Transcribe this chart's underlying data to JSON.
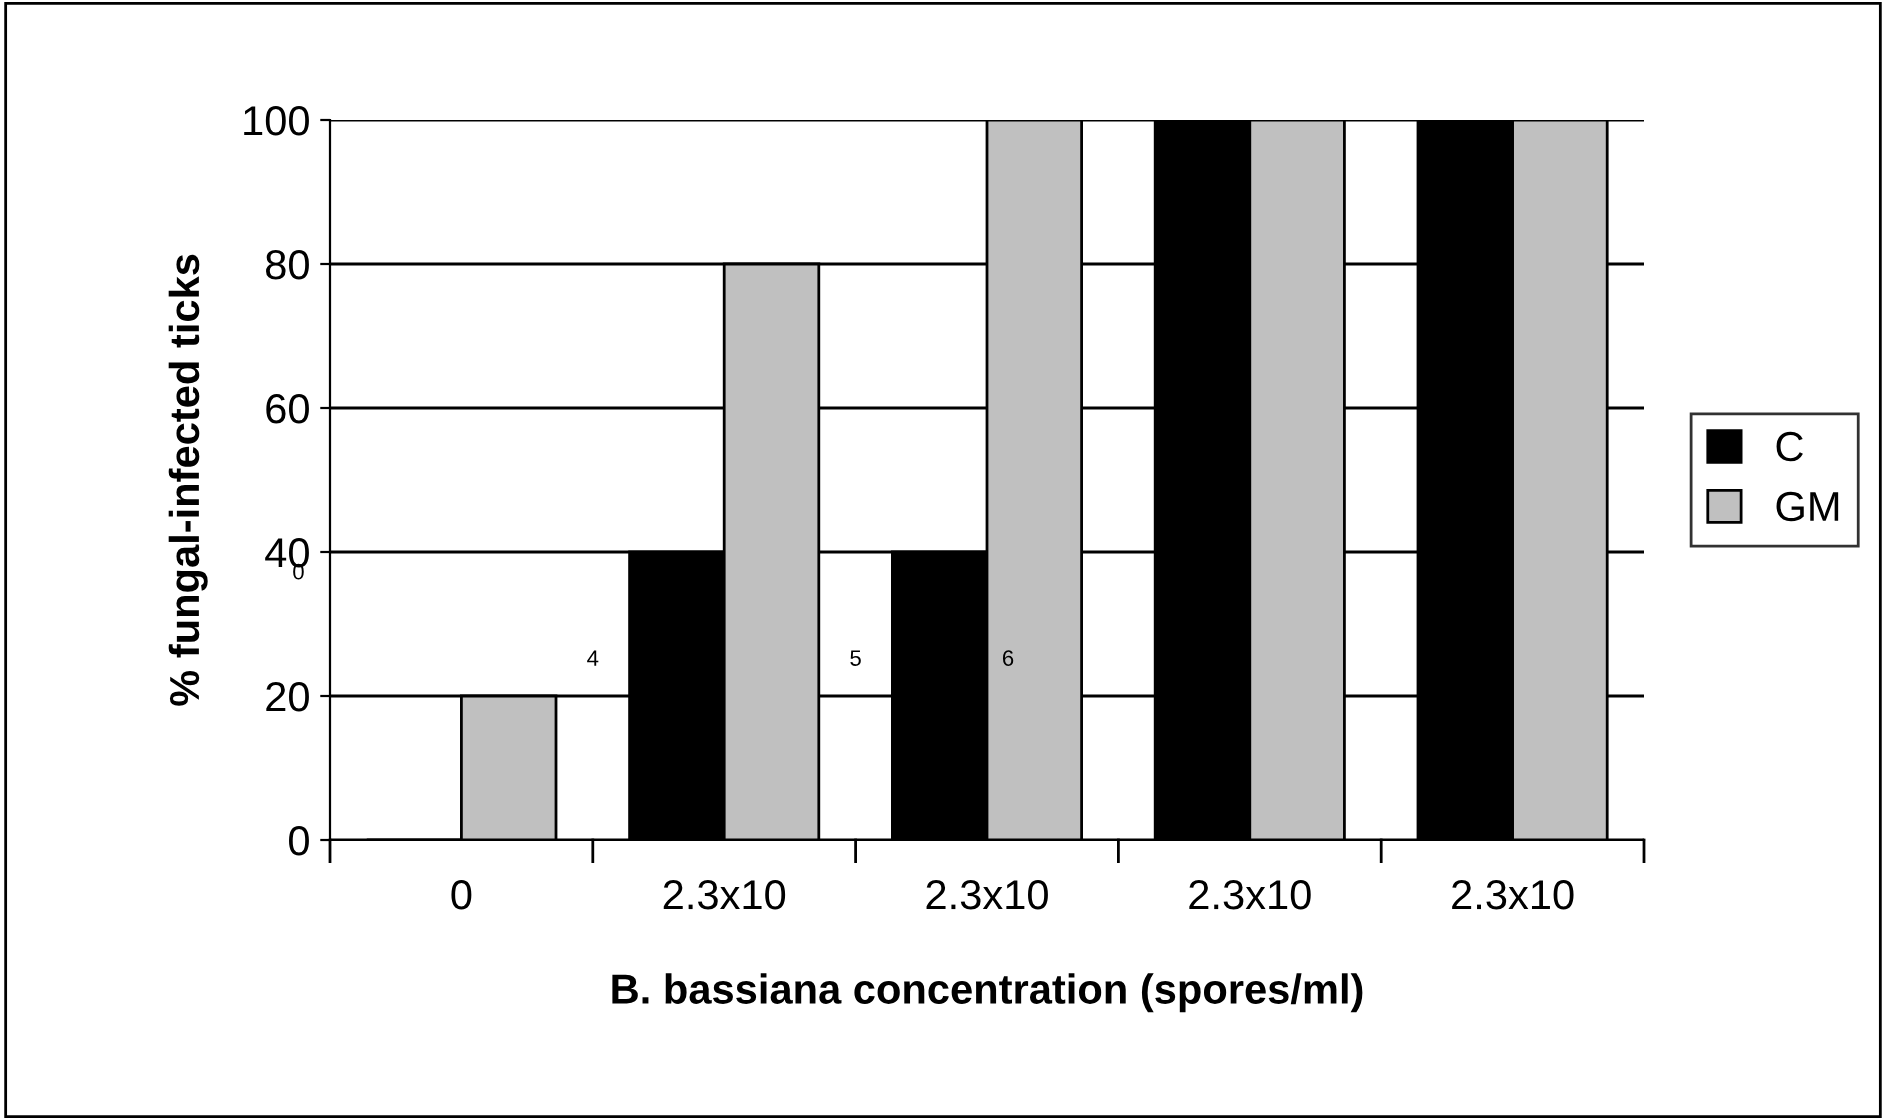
{
  "chart_data": {
    "type": "bar",
    "categories": [
      "0",
      "2.3x10",
      "2.3x10",
      "2.3x10",
      "2.3x10"
    ],
    "series": [
      {
        "name": "C",
        "color": "#000000",
        "values": [
          0,
          40,
          40,
          100,
          100
        ]
      },
      {
        "name": "GM",
        "color": "#c0c0c0",
        "values": [
          20,
          80,
          100,
          100,
          100
        ]
      }
    ],
    "xlabel": "B. bassiana concentration (spores/ml)",
    "ylabel": "% fungal-infected ticks",
    "ylim": [
      0,
      100
    ],
    "yticks": [
      0,
      20,
      40,
      60,
      80,
      100
    ],
    "grid": "y",
    "legend": "right",
    "annotations": [
      "0",
      "4",
      "5",
      "6"
    ]
  }
}
